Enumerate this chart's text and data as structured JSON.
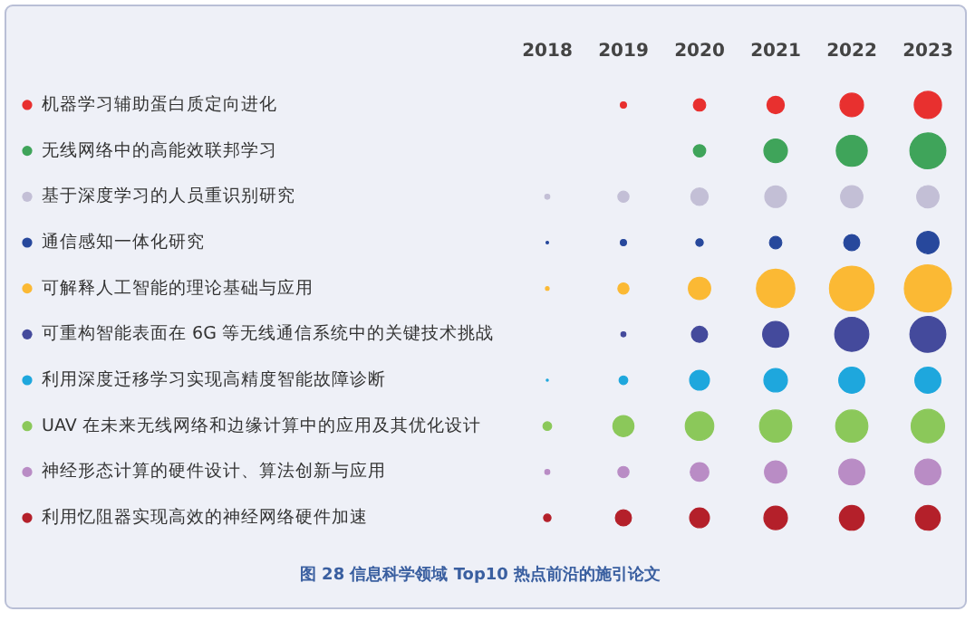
{
  "chart_data": {
    "type": "bubble",
    "orientation": "horizontal",
    "categories": [
      "机器学习辅助蛋白质定向进化",
      "无线网络中的高能效联邦学习",
      "基于深度学习的人员重识别研究",
      "通信感知一体化研究",
      "可解释人工智能的理论基础与应用",
      "可重构智能表面在 6G 等无线通信系统中的关键技术挑战",
      "利用深度迁移学习实现高精度智能故障诊断",
      "UAV 在未来无线网络和边缘计算中的应用及其优化设计",
      "神经形态计算的硬件设计、算法创新与应用",
      "利用忆阻器实现高效的神经网络硬件加速"
    ],
    "xlim": [
      2018,
      2023
    ],
    "xticks": [
      2018,
      2019,
      2020,
      2021,
      2022,
      2023
    ],
    "annotations": [
      "图 28 信息科学领域 Top10 热点前沿的施引论文"
    ],
    "series": [
      {
        "colors": [
          null,
          null,
          "#c3bfd6",
          "#27489c",
          "#fbb934",
          null,
          "#1ea7dd",
          "#8bc85a",
          "#b98cc5",
          "#b4202a"
        ],
        "values": [
          null,
          null,
          2018,
          2018,
          2018,
          null,
          2018,
          2018,
          2018,
          2018
        ],
        "sizes": [
          null,
          null,
          0.011,
          0.003,
          0.006,
          null,
          0.002,
          0.034,
          0.011,
          0.025
        ]
      },
      {
        "colors": [
          "#e8302f",
          null,
          "#c3bfd6",
          "#27489c",
          "#fbb934",
          "#444a9c",
          "#1ea7dd",
          "#8bc85a",
          "#b98cc5",
          "#b4202a"
        ],
        "values": [
          2019,
          null,
          2019,
          2019,
          2019,
          2019,
          2019,
          2019,
          2019,
          2019
        ],
        "sizes": [
          0.017,
          null,
          0.056,
          0.017,
          0.056,
          0.011,
          0.034,
          0.2,
          0.056,
          0.117
        ]
      },
      {
        "colors": [
          "#e8302f",
          "#3fa45a",
          "#c3bfd6",
          "#27489c",
          "#fbb934",
          "#444a9c",
          "#1ea7dd",
          "#8bc85a",
          "#b98cc5",
          "#b4202a"
        ],
        "values": [
          2020,
          2020,
          2020,
          2020,
          2020,
          2020,
          2020,
          2020,
          2020,
          2020
        ],
        "sizes": [
          0.069,
          0.069,
          0.136,
          0.025,
          0.224,
          0.117,
          0.177,
          0.366,
          0.156,
          0.177
        ]
      },
      {
        "colors": [
          "#e8302f",
          "#3fa45a",
          "#c3bfd6",
          "#27489c",
          "#fbb934",
          "#444a9c",
          "#1ea7dd",
          "#8bc85a",
          "#b98cc5",
          "#b4202a"
        ],
        "values": [
          2021,
          2021,
          2021,
          2021,
          2021,
          2021,
          2021,
          2021,
          2021,
          2021
        ],
        "sizes": [
          0.136,
          0.25,
          0.212,
          0.069,
          0.665,
          0.305,
          0.25,
          0.468,
          0.224,
          0.25
        ]
      },
      {
        "colors": [
          "#e8302f",
          "#3fa45a",
          "#c3bfd6",
          "#27489c",
          "#fbb934",
          "#444a9c",
          "#1ea7dd",
          "#8bc85a",
          "#b98cc5",
          "#b4202a"
        ],
        "values": [
          2022,
          2022,
          2022,
          2022,
          2022,
          2022,
          2022,
          2022,
          2022,
          2022
        ],
        "sizes": [
          0.25,
          0.433,
          0.224,
          0.117,
          0.897,
          0.524,
          0.305,
          0.468,
          0.305,
          0.277
        ]
      },
      {
        "colors": [
          "#e8302f",
          "#3fa45a",
          "#c3bfd6",
          "#27489c",
          "#fbb934",
          "#444a9c",
          "#1ea7dd",
          "#8bc85a",
          "#b98cc5",
          "#b4202a"
        ],
        "values": [
          2023,
          2023,
          2023,
          2023,
          2023,
          2023,
          2023,
          2023,
          2023,
          2023
        ],
        "sizes": [
          0.335,
          0.582,
          0.224,
          0.224,
          1,
          0.582,
          0.305,
          0.505,
          0.305,
          0.277
        ]
      }
    ]
  }
}
